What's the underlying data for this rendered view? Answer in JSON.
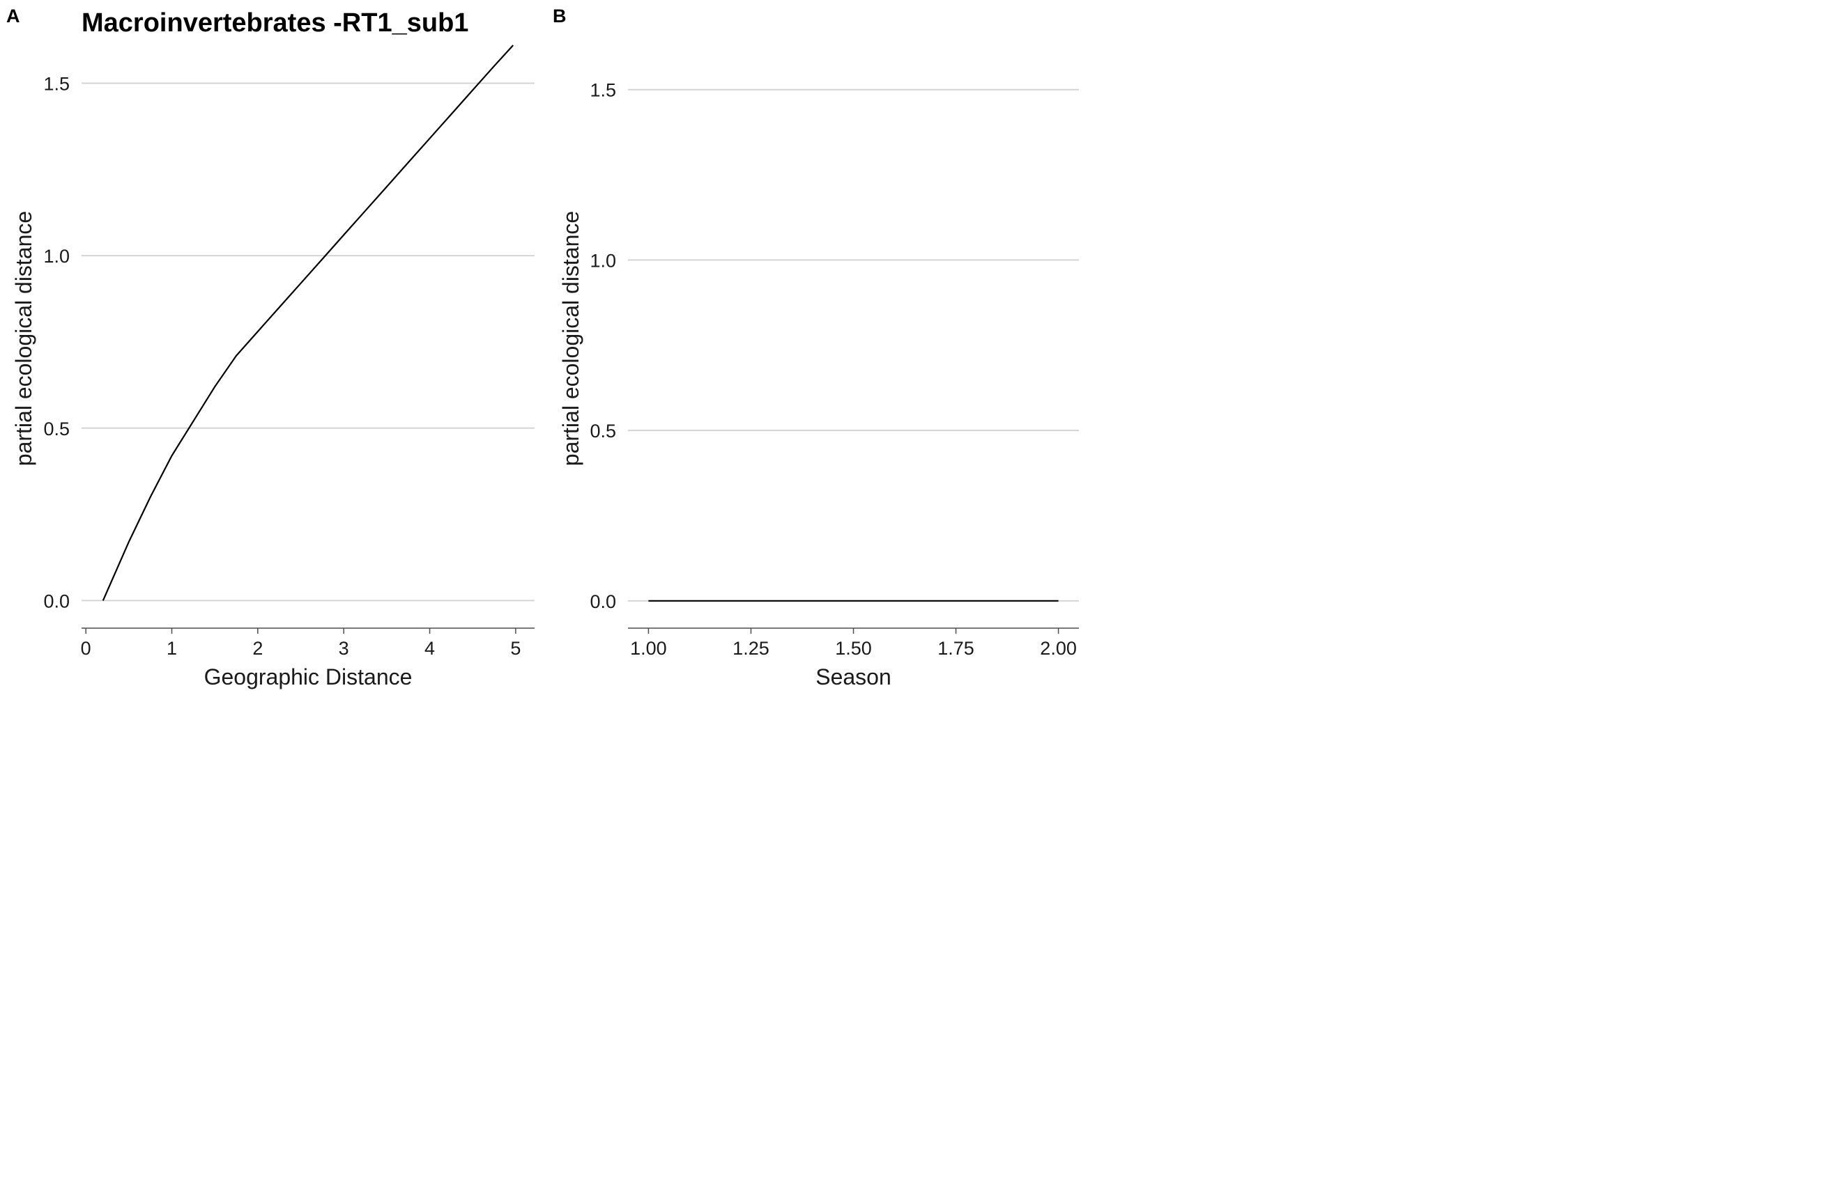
{
  "figure": {
    "title": "Macroinvertebrates -RT1_sub1",
    "panel_letters": [
      "A",
      "B"
    ]
  },
  "chart_data": [
    {
      "panel": "A",
      "type": "line",
      "xlabel": "Geographic Distance",
      "ylabel": "partial ecological distance",
      "xlim": [
        -0.05,
        5.22
      ],
      "ylim": [
        -0.08,
        1.6
      ],
      "xticks": [
        0,
        1,
        2,
        3,
        4,
        5
      ],
      "xtick_labels": [
        "0",
        "1",
        "2",
        "3",
        "4",
        "5"
      ],
      "yticks": [
        0.0,
        0.5,
        1.0,
        1.5
      ],
      "ytick_labels": [
        "0.0",
        "0.5",
        "1.0",
        "1.5"
      ],
      "grid": "horizontal",
      "series": [
        {
          "x": [
            0.2,
            0.5,
            0.75,
            1.0,
            1.25,
            1.5,
            1.75,
            2.0,
            2.25,
            2.5,
            2.75,
            3.0,
            3.25,
            3.5,
            3.75,
            4.0,
            4.25,
            4.5,
            4.75,
            4.97
          ],
          "y": [
            0.0,
            0.17,
            0.3,
            0.42,
            0.52,
            0.62,
            0.71,
            0.78,
            0.85,
            0.92,
            0.99,
            1.06,
            1.13,
            1.2,
            1.27,
            1.34,
            1.41,
            1.48,
            1.55,
            1.61
          ]
        }
      ]
    },
    {
      "panel": "B",
      "type": "line",
      "xlabel": "Season",
      "ylabel": "partial ecological distance",
      "xlim": [
        0.95,
        2.05
      ],
      "ylim": [
        -0.08,
        1.62
      ],
      "xticks": [
        1.0,
        1.25,
        1.5,
        1.75,
        2.0
      ],
      "xtick_labels": [
        "1.00",
        "1.25",
        "1.50",
        "1.75",
        "2.00"
      ],
      "yticks": [
        0.0,
        0.5,
        1.0,
        1.5
      ],
      "ytick_labels": [
        "0.0",
        "0.5",
        "1.0",
        "1.5"
      ],
      "grid": "horizontal",
      "series": [
        {
          "x": [
            1.0,
            2.0
          ],
          "y": [
            0.0,
            0.0
          ]
        }
      ]
    }
  ]
}
